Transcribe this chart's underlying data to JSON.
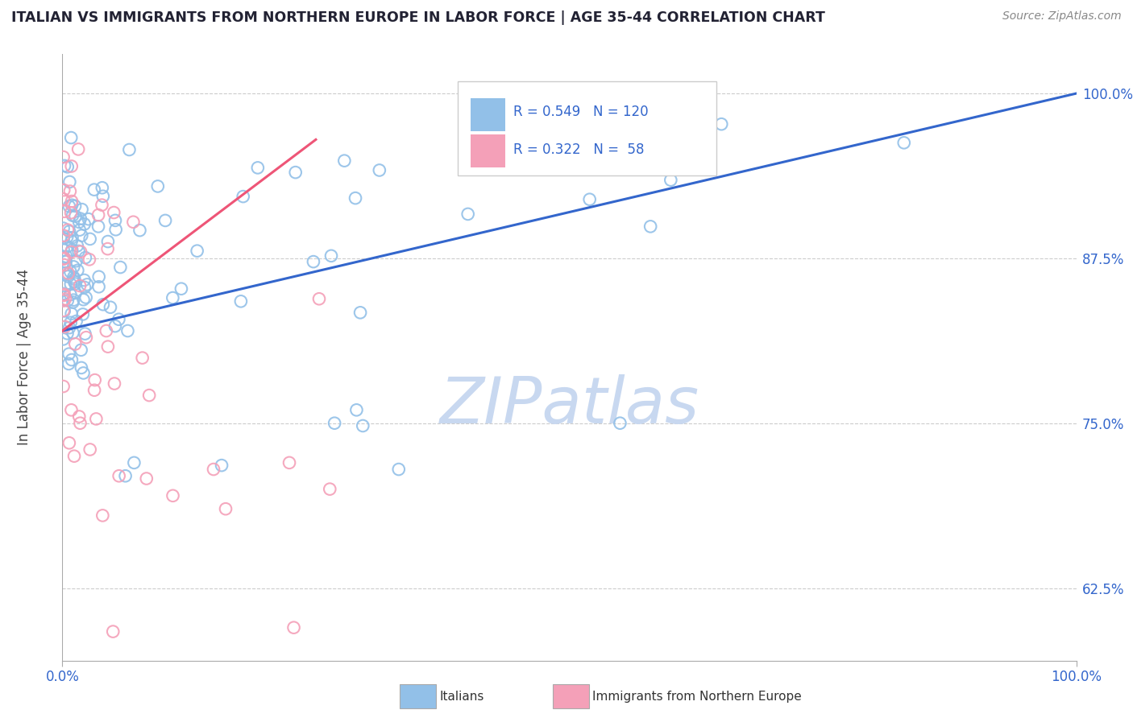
{
  "title": "ITALIAN VS IMMIGRANTS FROM NORTHERN EUROPE IN LABOR FORCE | AGE 35-44 CORRELATION CHART",
  "source": "Source: ZipAtlas.com",
  "ylabel": "In Labor Force | Age 35-44",
  "legend_label1": "Italians",
  "legend_label2": "Immigrants from Northern Europe",
  "R1": 0.549,
  "N1": 120,
  "R2": 0.322,
  "N2": 58,
  "blue_color": "#92C0E8",
  "pink_color": "#F4A0B8",
  "blue_line_color": "#3366CC",
  "pink_line_color": "#EE5577",
  "title_color": "#222233",
  "source_color": "#888888",
  "axis_label_color": "#3366CC",
  "watermark_color": "#C8D8F0",
  "grid_color": "#CCCCCC",
  "ytick_vals": [
    0.625,
    0.75,
    0.875,
    1.0
  ],
  "ytick_labels": [
    "62.5%",
    "75.0%",
    "87.5%",
    "100.0%"
  ],
  "xlim": [
    0.0,
    1.0
  ],
  "ylim": [
    0.57,
    1.03
  ]
}
